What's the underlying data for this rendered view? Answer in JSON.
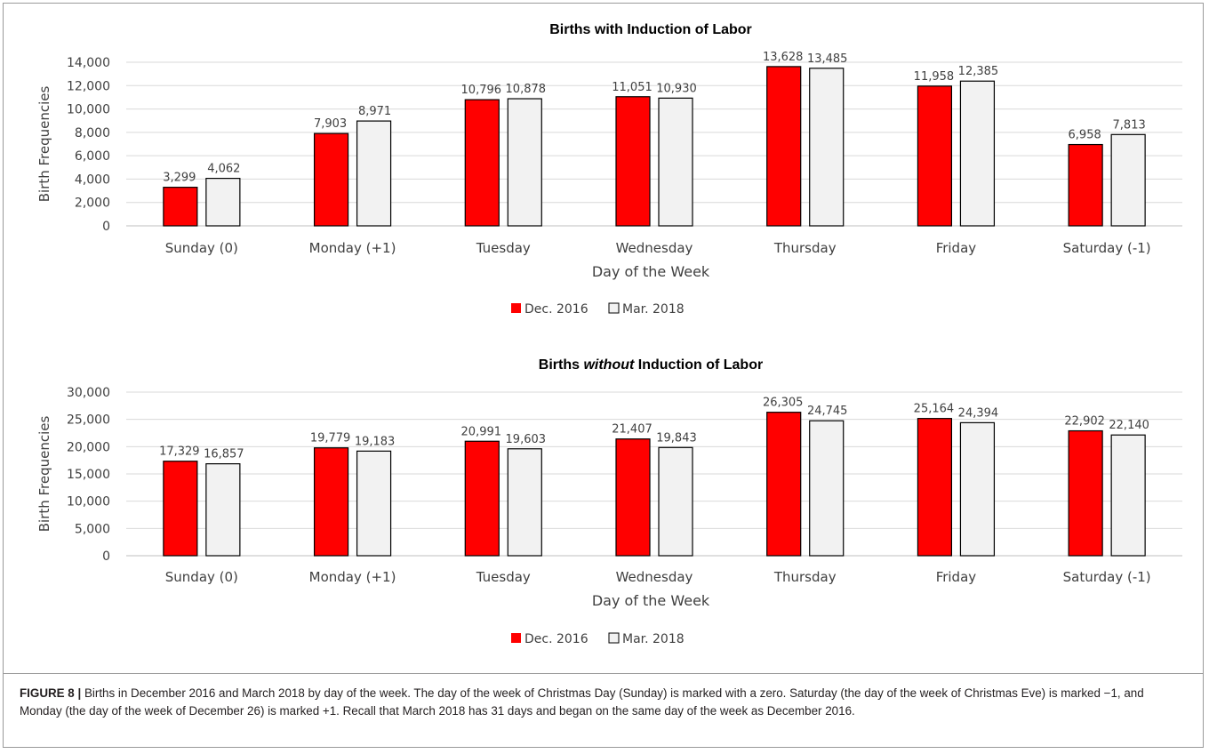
{
  "chart_data": [
    {
      "type": "bar",
      "title_parts": [
        "Births ",
        "with",
        " Induction of Labor"
      ],
      "title_italic_index": -1,
      "xlabel": "Day of the Week",
      "ylabel": "Birth Frequencies",
      "ylim": [
        0,
        14000
      ],
      "yticks": [
        0,
        2000,
        4000,
        6000,
        8000,
        10000,
        12000,
        14000
      ],
      "ytick_labels": [
        "0",
        "2,000",
        "4,000",
        "6,000",
        "8,000",
        "10,000",
        "12,000",
        "14,000"
      ],
      "categories": [
        "Sunday (0)",
        "Monday (+1)",
        "Tuesday",
        "Wednesday",
        "Thursday",
        "Friday",
        "Saturday (-1)"
      ],
      "series": [
        {
          "name": "Dec. 2016",
          "color": "#ff0000",
          "values": [
            3299,
            7903,
            10796,
            11051,
            13628,
            11958,
            6958
          ],
          "labels": [
            "3,299",
            "7,903",
            "10,796",
            "11,051",
            "13,628",
            "11,958",
            "6,958"
          ]
        },
        {
          "name": "Mar. 2018",
          "color": "#f2f2f2",
          "values": [
            4062,
            8971,
            10878,
            10930,
            13485,
            12385,
            7813
          ],
          "labels": [
            "4,062",
            "8,971",
            "10,878",
            "10,930",
            "13,485",
            "12,385",
            "7,813"
          ]
        }
      ],
      "grid": true,
      "legend": "bottom-center"
    },
    {
      "type": "bar",
      "title_parts": [
        "Births ",
        "without",
        " Induction of Labor"
      ],
      "title_italic_index": 1,
      "xlabel": "Day of the Week",
      "ylabel": "Birth Frequencies",
      "ylim": [
        0,
        30000
      ],
      "yticks": [
        0,
        5000,
        10000,
        15000,
        20000,
        25000,
        30000
      ],
      "ytick_labels": [
        "0",
        "5,000",
        "10,000",
        "15,000",
        "20,000",
        "25,000",
        "30,000"
      ],
      "categories": [
        "Sunday (0)",
        "Monday (+1)",
        "Tuesday",
        "Wednesday",
        "Thursday",
        "Friday",
        "Saturday (-1)"
      ],
      "series": [
        {
          "name": "Dec. 2016",
          "color": "#ff0000",
          "values": [
            17329,
            19779,
            20991,
            21407,
            26305,
            25164,
            22902
          ],
          "labels": [
            "17,329",
            "19,779",
            "20,991",
            "21,407",
            "26,305",
            "25,164",
            "22,902"
          ]
        },
        {
          "name": "Mar. 2018",
          "color": "#f2f2f2",
          "values": [
            16857,
            19183,
            19603,
            19843,
            24745,
            24394,
            22140
          ],
          "labels": [
            "16,857",
            "19,183",
            "19,603",
            "19,843",
            "24,745",
            "24,394",
            "22,140"
          ]
        }
      ],
      "grid": true,
      "legend": "bottom-center"
    }
  ],
  "caption": {
    "label": "FIGURE 8 |",
    "text": " Births in December 2016 and March 2018 by day of the week. The day of the week of Christmas Day (Sunday) is marked with a zero. Saturday (the day of the week of Christmas Eve) is marked −1, and Monday (the day of the week of December 26) is marked +1. Recall that March 2018 has 31 days and began on the same day of the week as December 2016."
  }
}
